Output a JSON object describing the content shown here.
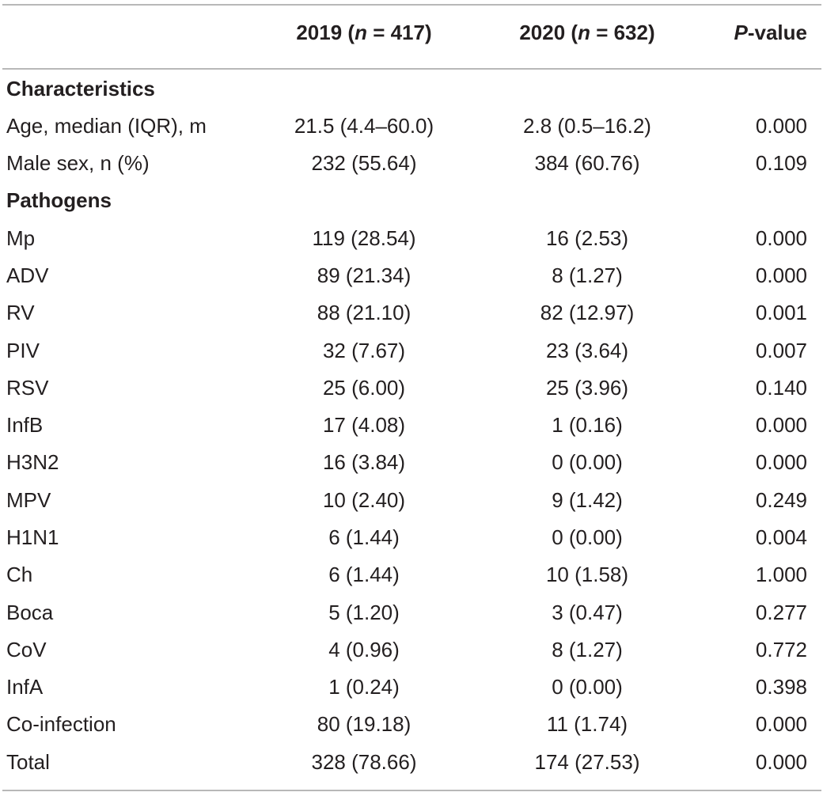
{
  "table": {
    "header": {
      "label": "",
      "col_2019": {
        "year": "2019 (",
        "n": "n",
        "count": " = 417)"
      },
      "col_2020": {
        "year": "2020 (",
        "n": "n",
        "count": " = 632)"
      },
      "col_p": {
        "p": "P",
        "rest": "-value"
      }
    },
    "sections": {
      "characteristics": "Characteristics",
      "pathogens": "Pathogens"
    },
    "characteristics_rows": [
      {
        "label": "Age, median (IQR), m",
        "v2019": "21.5 (4.4–60.0)",
        "v2020": "2.8 (0.5–16.2)",
        "p": "0.000"
      },
      {
        "label": "Male sex, n (%)",
        "v2019": "232 (55.64)",
        "v2020": "384 (60.76)",
        "p": "0.109"
      }
    ],
    "pathogen_rows": [
      {
        "label": "Mp",
        "v2019": "119 (28.54)",
        "v2020": "16 (2.53)",
        "p": "0.000"
      },
      {
        "label": "ADV",
        "v2019": "89 (21.34)",
        "v2020": "8 (1.27)",
        "p": "0.000"
      },
      {
        "label": "RV",
        "v2019": "88 (21.10)",
        "v2020": "82 (12.97)",
        "p": "0.001"
      },
      {
        "label": "PIV",
        "v2019": "32 (7.67)",
        "v2020": "23 (3.64)",
        "p": "0.007"
      },
      {
        "label": "RSV",
        "v2019": "25 (6.00)",
        "v2020": "25 (3.96)",
        "p": "0.140"
      },
      {
        "label": "InfB",
        "v2019": "17 (4.08)",
        "v2020": "1 (0.16)",
        "p": "0.000"
      },
      {
        "label": "H3N2",
        "v2019": "16 (3.84)",
        "v2020": "0 (0.00)",
        "p": "0.000"
      },
      {
        "label": "MPV",
        "v2019": "10 (2.40)",
        "v2020": "9 (1.42)",
        "p": "0.249"
      },
      {
        "label": "H1N1",
        "v2019": "6 (1.44)",
        "v2020": "0 (0.00)",
        "p": "0.004"
      },
      {
        "label": "Ch",
        "v2019": "6 (1.44)",
        "v2020": "10 (1.58)",
        "p": "1.000"
      },
      {
        "label": "Boca",
        "v2019": "5 (1.20)",
        "v2020": "3 (0.47)",
        "p": "0.277"
      },
      {
        "label": "CoV",
        "v2019": "4 (0.96)",
        "v2020": "8 (1.27)",
        "p": "0.772"
      },
      {
        "label": "InfA",
        "v2019": "1 (0.24)",
        "v2020": "0 (0.00)",
        "p": "0.398"
      },
      {
        "label": "Co-infection",
        "v2019": "80 (19.18)",
        "v2020": "11 (1.74)",
        "p": "0.000"
      },
      {
        "label": "Total",
        "v2019": "328 (78.66)",
        "v2020": "174 (27.53)",
        "p": "0.000"
      }
    ]
  }
}
